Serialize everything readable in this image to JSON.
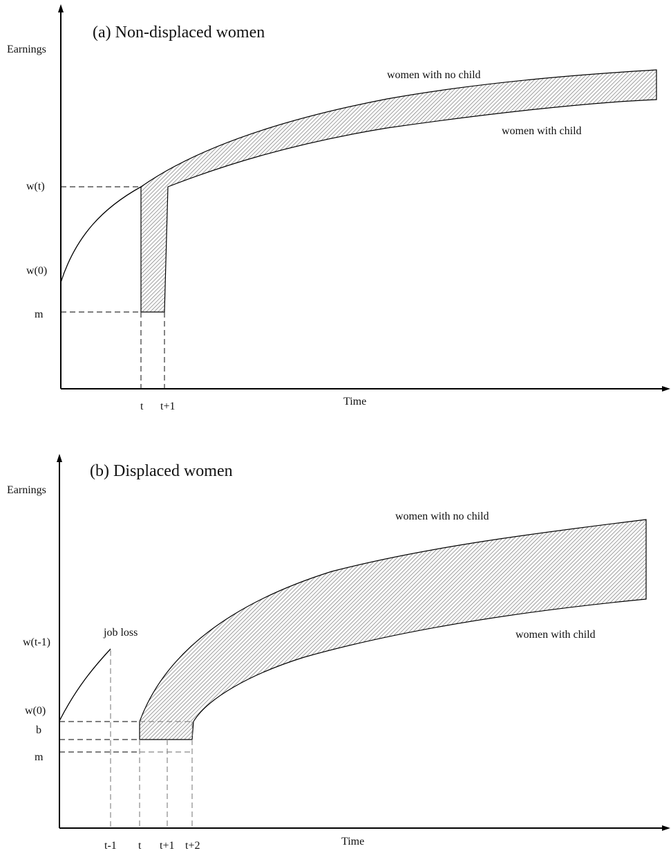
{
  "panel_a": {
    "title": "(a) Non-displaced women",
    "y_axis_label": "Earnings",
    "x_axis_label": "Time",
    "y_ticks": {
      "wt": "w(t)",
      "w0": "w(0)",
      "m": "m"
    },
    "x_ticks": {
      "t": "t",
      "t1": "t+1"
    },
    "curve_labels": {
      "no_child": "women with no child",
      "child": "women with child"
    }
  },
  "panel_b": {
    "title": "(b) Displaced women",
    "y_axis_label": "Earnings",
    "x_axis_label": "Time",
    "y_ticks": {
      "wtm1": "w(t-1)",
      "w0": "w(0)",
      "b": "b",
      "m": "m"
    },
    "x_ticks": {
      "tm1": "t-1",
      "t": "t",
      "t1": "t+1",
      "t2": "t+2"
    },
    "annotation": "job loss",
    "curve_labels": {
      "no_child": "women with no child",
      "child": "women with child"
    }
  },
  "colors": {
    "line": "#000000",
    "hatch": "#777777",
    "dash": "#333333"
  }
}
